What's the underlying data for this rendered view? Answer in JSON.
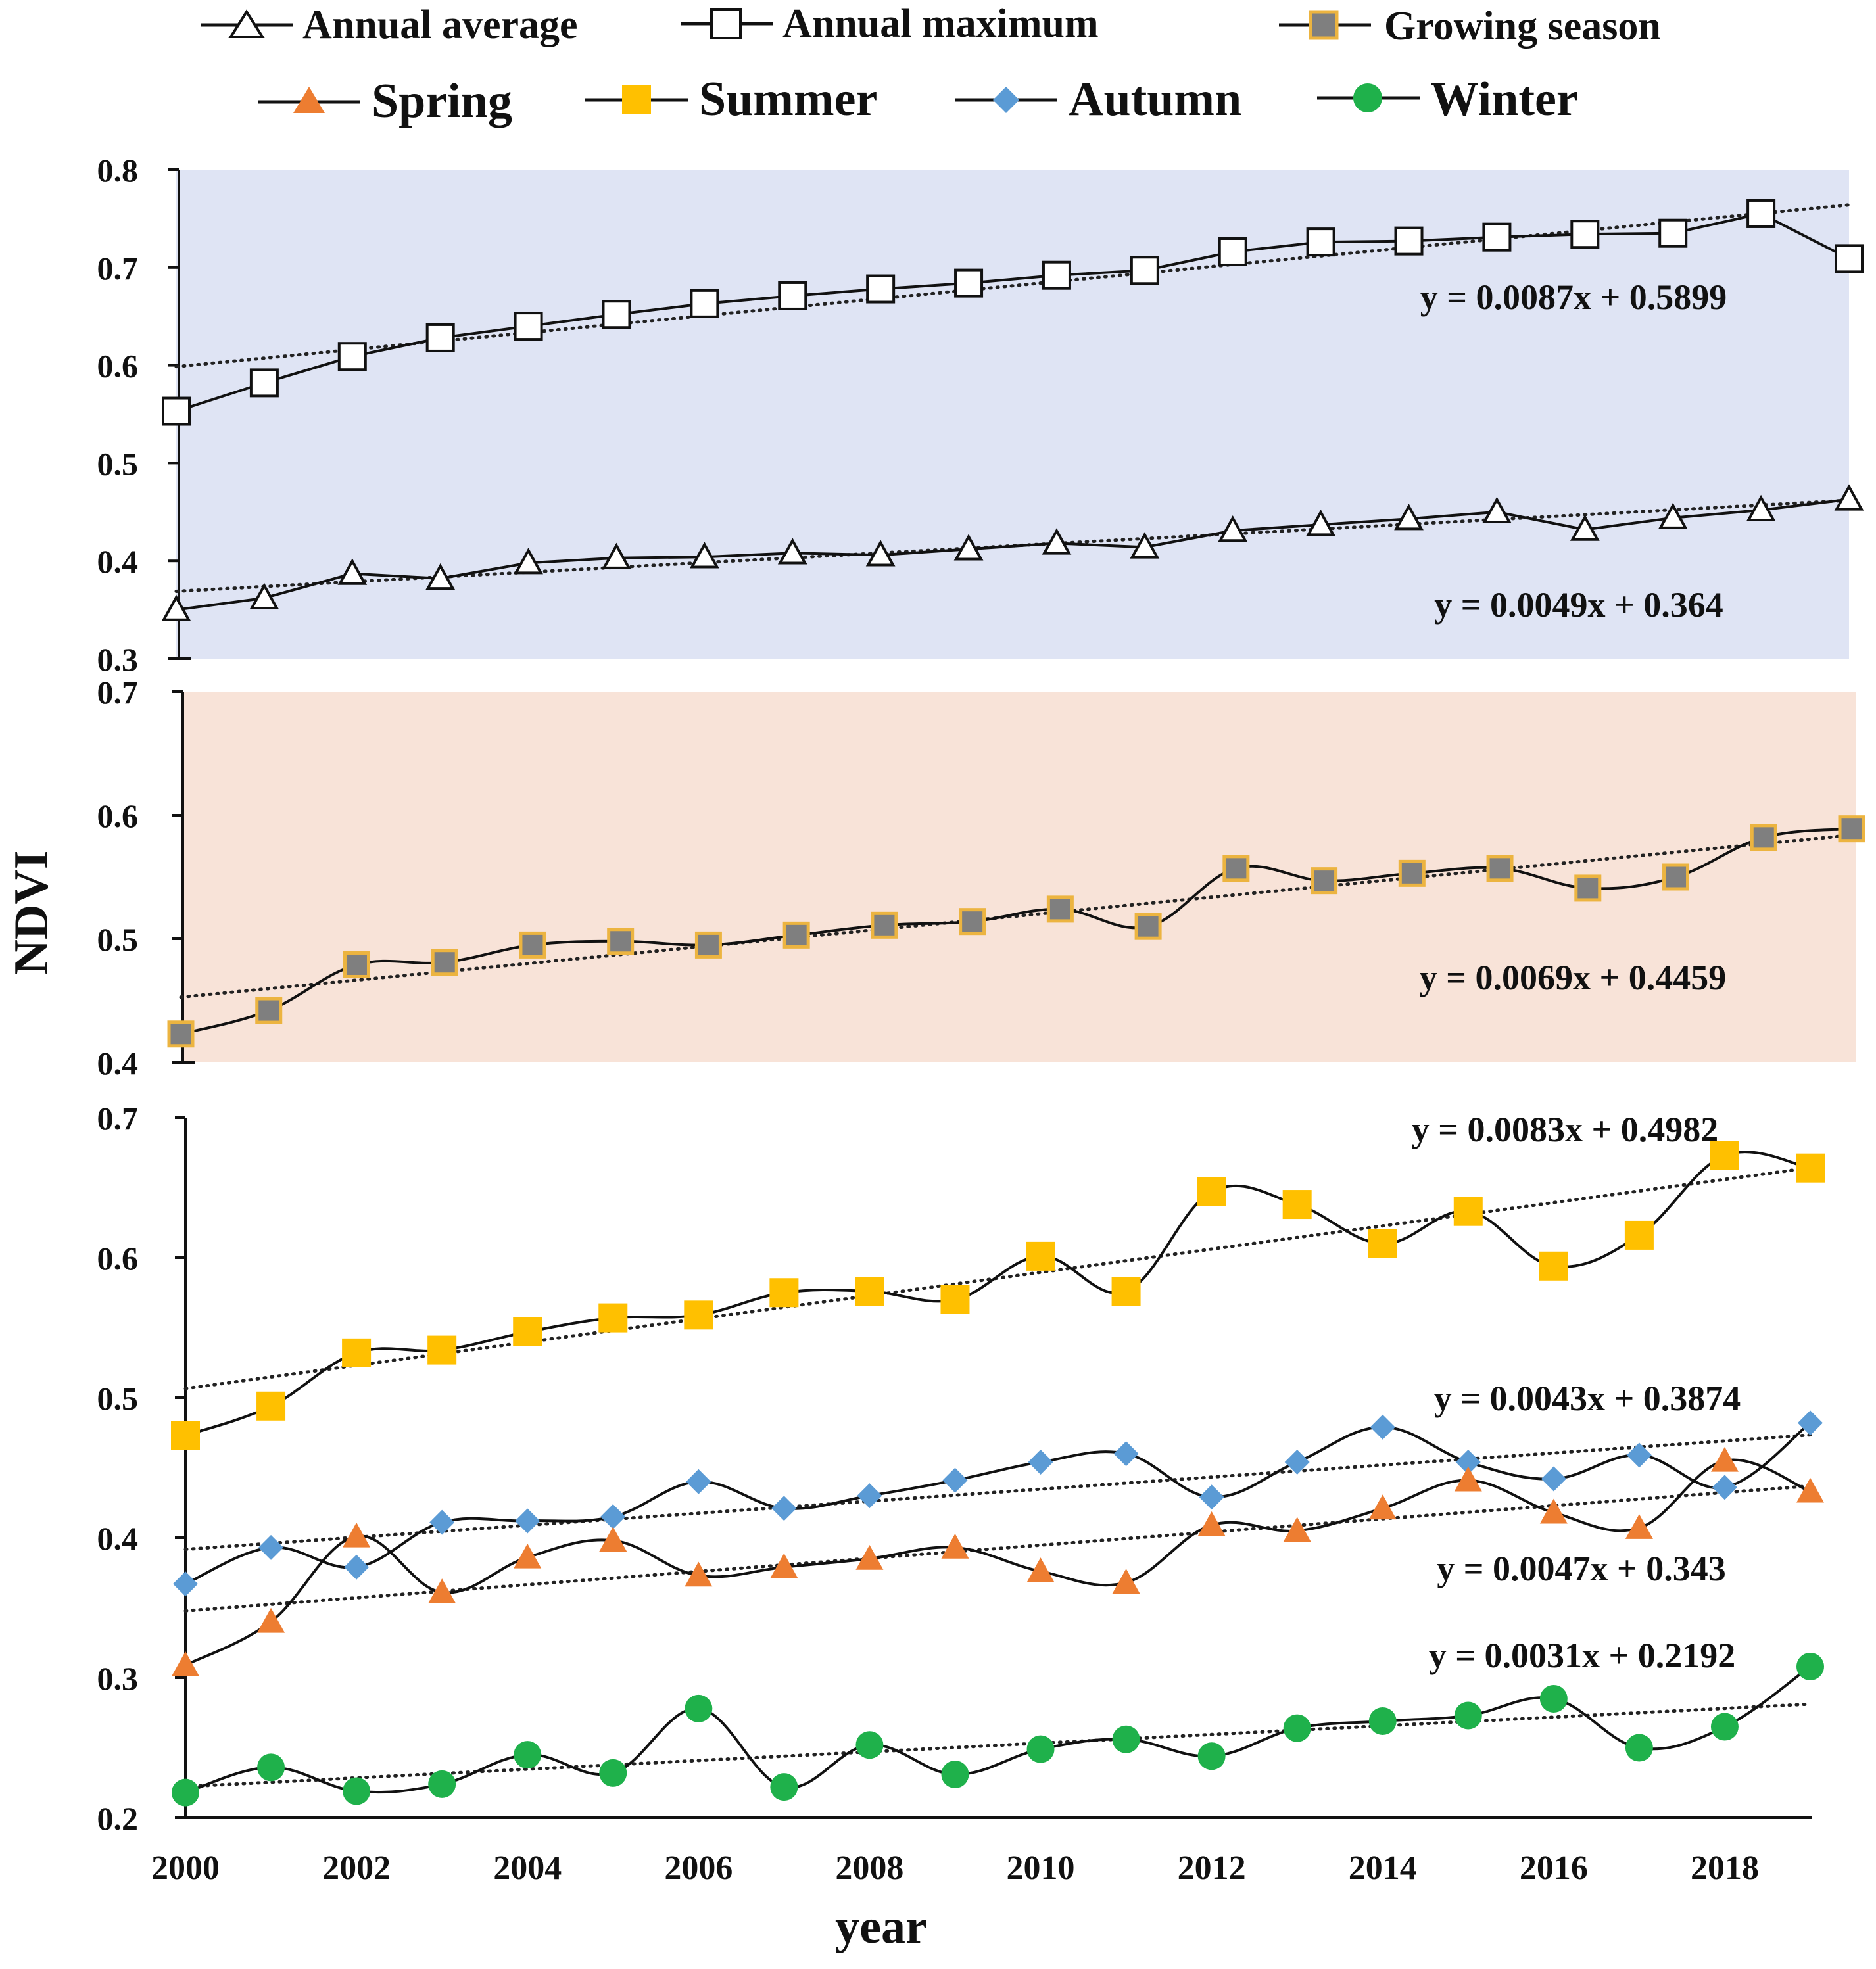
{
  "legend": {
    "annual_average": "Annual average",
    "annual_maximum": "Annual maximum",
    "growing_season": "Growing season",
    "spring": "Spring",
    "summer": "Summer",
    "autumn": "Autumn",
    "winter": "Winter"
  },
  "y_axis_title": "NDVI",
  "x_axis_title": "year",
  "x_tick_labels": [
    "2000",
    "2002",
    "2004",
    "2006",
    "2008",
    "2010",
    "2012",
    "2014",
    "2016",
    "2018"
  ],
  "colors": {
    "panel1_bg": "#dfe4f4",
    "panel2_bg": "#f8e3d8",
    "spring": "#ed7d31",
    "summer": "#ffc000",
    "autumn": "#5b9bd5",
    "winter": "#1fb14b",
    "growing_fill": "#7f7f7f",
    "growing_edge": "#ecb440"
  },
  "chart_data": [
    {
      "type": "line",
      "panel": "top",
      "ylim": [
        0.3,
        0.8
      ],
      "ytick_labels": [
        "0.3",
        "0.4",
        "0.5",
        "0.6",
        "0.7",
        "0.8"
      ],
      "x": [
        2000,
        2001,
        2002,
        2003,
        2004,
        2005,
        2006,
        2007,
        2008,
        2009,
        2010,
        2011,
        2012,
        2013,
        2014,
        2015,
        2016,
        2017,
        2018,
        2019
      ],
      "series": [
        {
          "name": "Annual maximum",
          "values": [
            0.553,
            0.582,
            0.609,
            0.628,
            0.64,
            0.652,
            0.663,
            0.671,
            0.678,
            0.684,
            0.692,
            0.697,
            0.716,
            0.726,
            0.727,
            0.731,
            0.734,
            0.735,
            0.755,
            0.709
          ],
          "trend": [
            0.5986,
            0.7639
          ]
        },
        {
          "name": "Annual average",
          "values": [
            0.35,
            0.362,
            0.387,
            0.382,
            0.398,
            0.403,
            0.404,
            0.408,
            0.406,
            0.412,
            0.418,
            0.414,
            0.431,
            0.437,
            0.443,
            0.45,
            0.432,
            0.444,
            0.452,
            0.463
          ],
          "trend": [
            0.3689,
            0.462
          ]
        }
      ],
      "annotations": [
        "y = 0.0087x + 0.5899",
        "y = 0.0049x + 0.364"
      ]
    },
    {
      "type": "line",
      "panel": "middle",
      "ylim": [
        0.4,
        0.7
      ],
      "ytick_labels": [
        "0.4",
        "0.5",
        "0.6",
        "0.7"
      ],
      "x": [
        2000,
        2001,
        2002,
        2003,
        2004,
        2005,
        2006,
        2007,
        2008,
        2009,
        2010,
        2011,
        2012,
        2013,
        2014,
        2015,
        2016,
        2017,
        2018,
        2019
      ],
      "series": [
        {
          "name": "Growing season",
          "values": [
            0.423,
            0.442,
            0.479,
            0.481,
            0.495,
            0.498,
            0.495,
            0.503,
            0.511,
            0.514,
            0.524,
            0.51,
            0.557,
            0.547,
            0.553,
            0.557,
            0.541,
            0.55,
            0.582,
            0.589
          ],
          "trend": [
            0.4528,
            0.5839
          ]
        }
      ],
      "annotations": [
        "y = 0.0069x + 0.4459"
      ]
    },
    {
      "type": "line",
      "panel": "bottom",
      "ylim": [
        0.2,
        0.7
      ],
      "ytick_labels": [
        "0.2",
        "0.3",
        "0.4",
        "0.5",
        "0.6",
        "0.7"
      ],
      "x": [
        2000,
        2001,
        2002,
        2003,
        2004,
        2005,
        2006,
        2007,
        2008,
        2009,
        2010,
        2011,
        2012,
        2013,
        2014,
        2015,
        2016,
        2017,
        2018,
        2019
      ],
      "series": [
        {
          "name": "Summer",
          "values": [
            0.473,
            0.494,
            0.532,
            0.534,
            0.547,
            0.557,
            0.559,
            0.575,
            0.576,
            0.57,
            0.601,
            0.576,
            0.647,
            0.638,
            0.61,
            0.633,
            0.594,
            0.616,
            0.673,
            0.664
          ],
          "trend": [
            0.5065,
            0.6642
          ]
        },
        {
          "name": "Autumn",
          "values": [
            0.367,
            0.393,
            0.379,
            0.411,
            0.412,
            0.415,
            0.44,
            0.421,
            0.43,
            0.441,
            0.454,
            0.46,
            0.429,
            0.454,
            0.479,
            0.454,
            0.442,
            0.459,
            0.436,
            0.482
          ],
          "trend": [
            0.3917,
            0.4734
          ]
        },
        {
          "name": "Spring",
          "values": [
            0.309,
            0.34,
            0.401,
            0.361,
            0.386,
            0.398,
            0.373,
            0.379,
            0.385,
            0.393,
            0.376,
            0.368,
            0.409,
            0.405,
            0.421,
            0.441,
            0.418,
            0.407,
            0.455,
            0.433
          ],
          "trend": [
            0.3477,
            0.437
          ]
        },
        {
          "name": "Winter",
          "values": [
            0.218,
            0.236,
            0.219,
            0.224,
            0.245,
            0.232,
            0.278,
            0.222,
            0.252,
            0.231,
            0.249,
            0.256,
            0.244,
            0.264,
            0.269,
            0.273,
            0.285,
            0.25,
            0.265,
            0.308
          ],
          "trend": [
            0.2223,
            0.2812
          ]
        }
      ],
      "annotations": [
        "y = 0.0083x + 0.4982",
        "y = 0.0043x + 0.3874",
        "y = 0.0047x + 0.343",
        "y = 0.0031x + 0.2192"
      ]
    }
  ]
}
